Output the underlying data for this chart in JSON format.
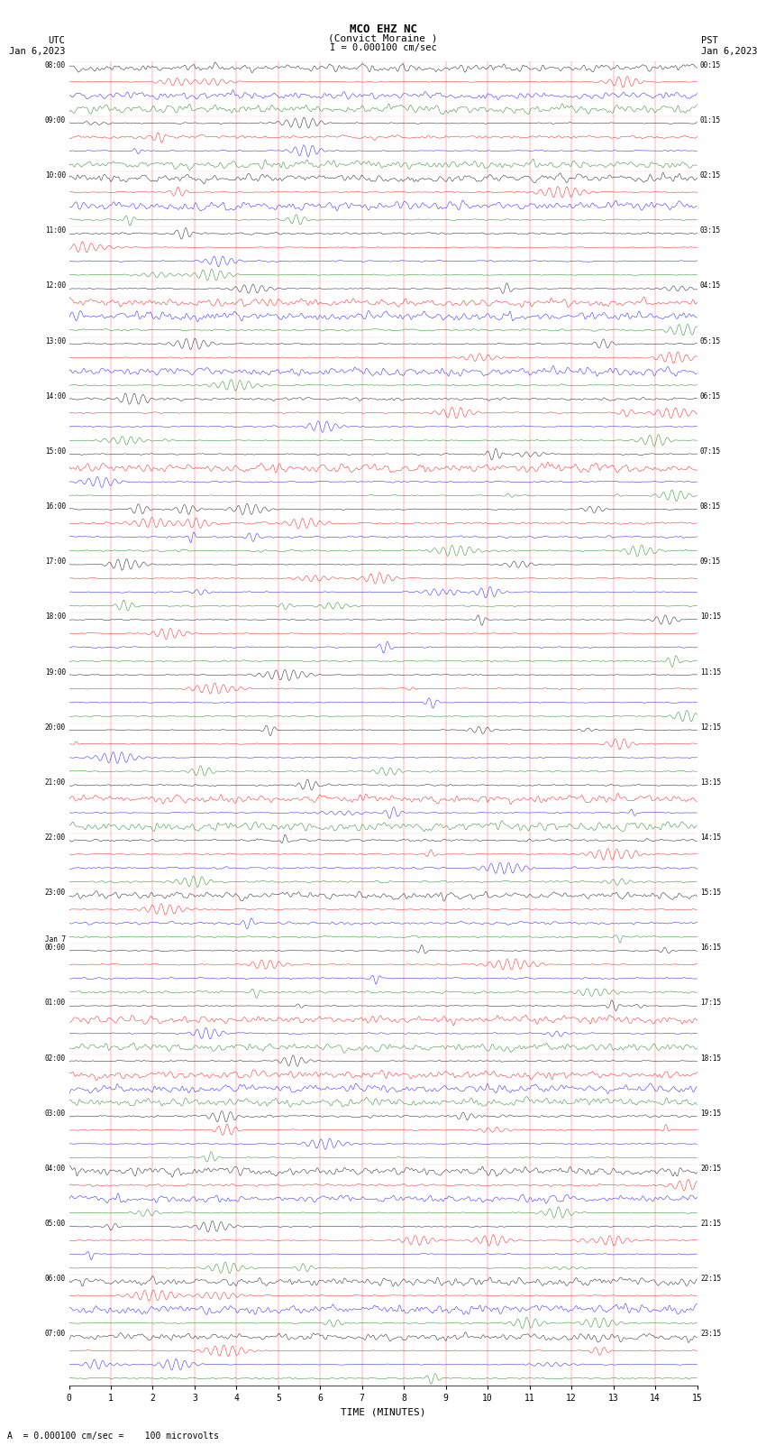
{
  "title_line1": "MCO EHZ NC",
  "title_line2": "(Convict Moraine )",
  "scale_text": "I = 0.000100 cm/sec",
  "footer_text": "A  = 0.000100 cm/sec =    100 microvolts",
  "utc_label": "UTC",
  "pst_label": "PST",
  "date_left": "Jan 6,2023",
  "date_right": "Jan 6,2023",
  "xlabel": "TIME (MINUTES)",
  "bg_color": "#ffffff",
  "trace_colors": [
    "black",
    "red",
    "blue",
    "green"
  ],
  "minutes_per_row": 15,
  "noise_seed": 42,
  "figsize": [
    8.5,
    16.13
  ],
  "dpi": 100,
  "row_labels_utc": [
    "08:00",
    "09:00",
    "10:00",
    "11:00",
    "12:00",
    "13:00",
    "14:00",
    "15:00",
    "16:00",
    "17:00",
    "18:00",
    "19:00",
    "20:00",
    "21:00",
    "22:00",
    "23:00",
    "Jan 7\n00:00",
    "01:00",
    "02:00",
    "03:00",
    "04:00",
    "05:00",
    "06:00",
    "07:00"
  ],
  "row_labels_pst": [
    "00:15",
    "01:15",
    "02:15",
    "03:15",
    "04:15",
    "05:15",
    "06:15",
    "07:15",
    "08:15",
    "09:15",
    "10:15",
    "11:15",
    "12:15",
    "13:15",
    "14:15",
    "15:15",
    "16:15",
    "17:15",
    "18:15",
    "19:15",
    "20:15",
    "21:15",
    "22:15",
    "23:15"
  ],
  "num_hour_rows": 24,
  "traces_per_hour": 4,
  "samples_per_trace": 900
}
